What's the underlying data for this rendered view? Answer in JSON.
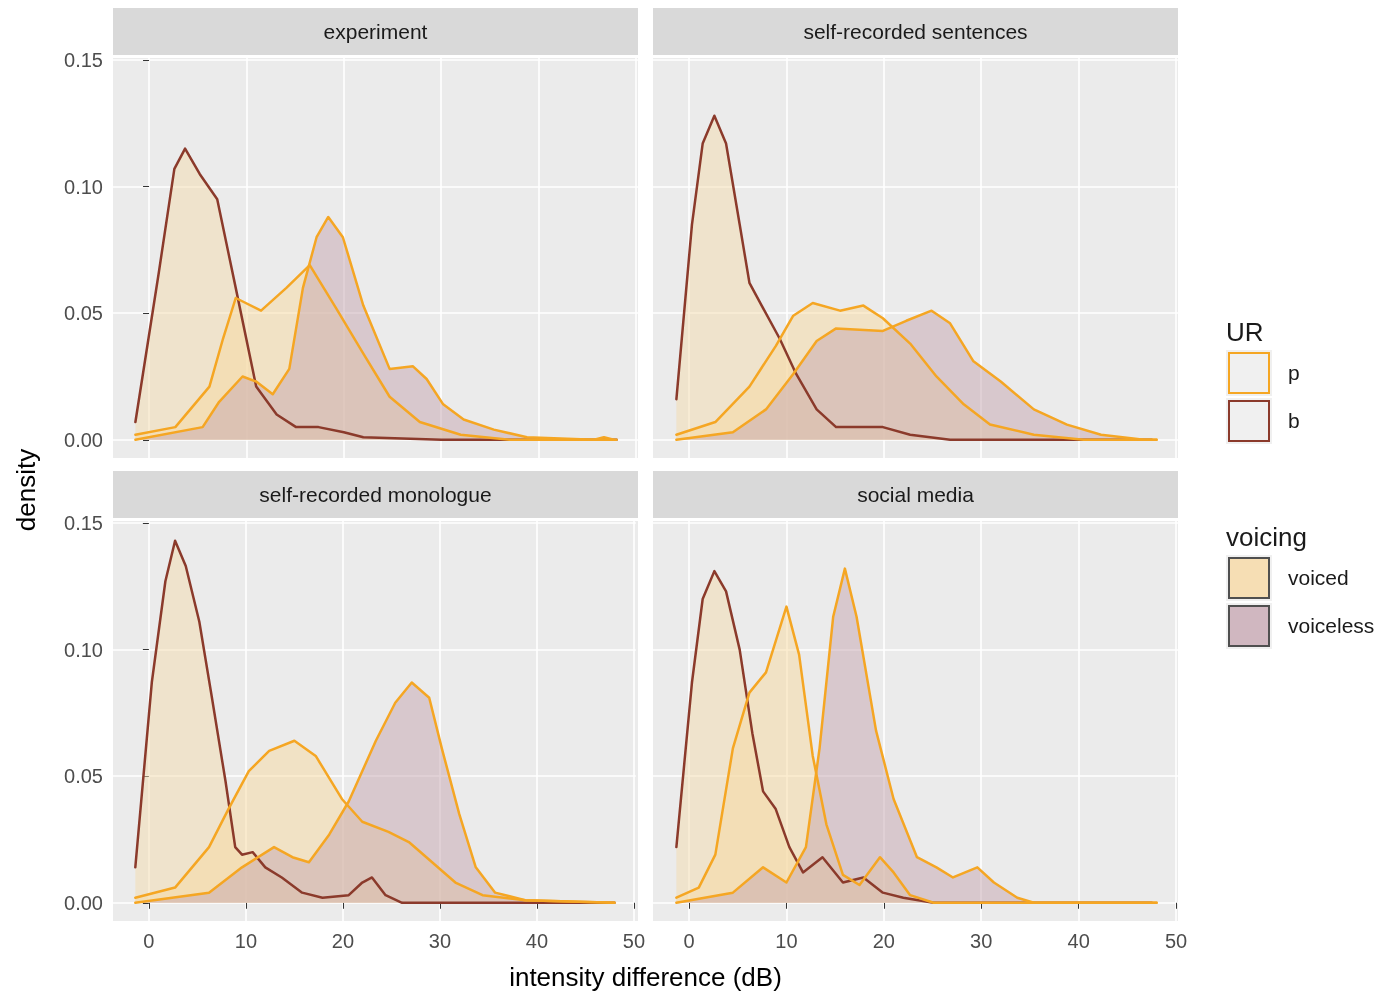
{
  "chart_data": [
    {
      "type": "area",
      "title": "experiment",
      "xlabel": "intensity difference (dB)",
      "ylabel": "density",
      "xlim": [
        -3.7,
        50.2
      ],
      "ylim": [
        -0.0072,
        0.1508
      ],
      "xticks": [
        0,
        10,
        20,
        30,
        40,
        50
      ],
      "yticks": [
        {
          "value": 0,
          "label": "0.00"
        },
        {
          "value": 0.05,
          "label": "0.05"
        },
        {
          "value": 0.1,
          "label": "0.10"
        },
        {
          "value": 0.15,
          "label": "0.15"
        }
      ],
      "grid": true,
      "tick_labels": "y",
      "series": [
        {
          "color": "#f4dcae",
          "x": [
            -1.4,
            1.0,
            2.6,
            3.7,
            5.2,
            7.0,
            8.9,
            11,
            13.1,
            15.1,
            17.4,
            20,
            22,
            30,
            40,
            48
          ],
          "values": [
            0.007,
            0.066,
            0.107,
            0.115,
            0.105,
            0.095,
            0.06,
            0.021,
            0.01,
            0.005,
            0.005,
            0.003,
            0.001,
            0,
            0,
            0
          ]
        },
        {
          "color": "#f8d9a0",
          "x": [
            -1.4,
            2.7,
            6.2,
            7.6,
            8.9,
            11.5,
            14.1,
            16.5,
            19.2,
            22,
            24.7,
            27.8,
            32,
            37,
            48
          ],
          "values": [
            0.002,
            0.005,
            0.021,
            0.04,
            0.056,
            0.051,
            0.06,
            0.069,
            0.052,
            0.034,
            0.017,
            0.007,
            0.002,
            0,
            0
          ]
        },
        {
          "color": "#c6a5b0",
          "x": [
            -1.4,
            5.5,
            7.2,
            9.6,
            11,
            12.7,
            14.4,
            15.8,
            17.2,
            18.4,
            19.9,
            22,
            24.7,
            27.1,
            28.5,
            30.2,
            32.3,
            35.4,
            38.8,
            45.7,
            46.7,
            47.7
          ],
          "values": [
            0,
            0.005,
            0.015,
            0.025,
            0.023,
            0.018,
            0.028,
            0.06,
            0.08,
            0.088,
            0.08,
            0.053,
            0.028,
            0.029,
            0.024,
            0.014,
            0.008,
            0.004,
            0.001,
            0,
            0.001,
            0
          ]
        }
      ]
    },
    {
      "type": "area",
      "title": "self-recorded sentences",
      "xlim": [
        -3.7,
        50.2
      ],
      "ylim": [
        -0.0072,
        0.1508
      ],
      "xticks": [
        0,
        10,
        20,
        30,
        40,
        50
      ],
      "yticks": [
        0,
        0.05,
        0.1,
        0.15
      ],
      "grid": true,
      "tick_labels": false,
      "series": [
        {
          "color": "#f4dcae",
          "x": [
            -1.3,
            0.3,
            1.4,
            2.6,
            3.8,
            5.2,
            6.2,
            7.6,
            9.3,
            11,
            13.1,
            15.1,
            17.9,
            19.9,
            22.7,
            26.8,
            47.5
          ],
          "values": [
            0.016,
            0.085,
            0.117,
            0.128,
            0.117,
            0.085,
            0.062,
            0.052,
            0.04,
            0.026,
            0.012,
            0.005,
            0.005,
            0.005,
            0.002,
            0,
            0
          ]
        },
        {
          "color": "#f8d9a0",
          "x": [
            -1.3,
            2.7,
            6.2,
            8.9,
            10.7,
            12.7,
            15.5,
            17.9,
            19.9,
            22.7,
            25.4,
            28.2,
            30.9,
            35.4,
            40.5,
            48
          ],
          "values": [
            0.002,
            0.007,
            0.021,
            0.037,
            0.049,
            0.054,
            0.051,
            0.053,
            0.048,
            0.038,
            0.025,
            0.014,
            0.006,
            0.002,
            0,
            0
          ]
        },
        {
          "color": "#c6a5b0",
          "x": [
            -1.3,
            4.5,
            7.9,
            10.7,
            13.1,
            15.1,
            19.9,
            22.3,
            24.9,
            26.8,
            29.2,
            32,
            35.4,
            38.8,
            42.3,
            46.7,
            48
          ],
          "values": [
            0,
            0.003,
            0.012,
            0.026,
            0.039,
            0.044,
            0.043,
            0.047,
            0.051,
            0.046,
            0.031,
            0.023,
            0.012,
            0.006,
            0.002,
            0,
            0
          ]
        }
      ]
    },
    {
      "type": "area",
      "title": "self-recorded monologue",
      "xlim": [
        -3.7,
        50.2
      ],
      "ylim": [
        -0.0072,
        0.1508
      ],
      "xticks": [
        0,
        10,
        20,
        30,
        40,
        50
      ],
      "yticks": [
        {
          "value": 0,
          "label": "0.00"
        },
        {
          "value": 0.05,
          "label": "0.05"
        },
        {
          "value": 0.1,
          "label": "0.10"
        },
        {
          "value": 0.15,
          "label": "0.15"
        }
      ],
      "grid": true,
      "series": [
        {
          "color": "#f4dcae",
          "x": [
            -1.4,
            0.3,
            1.7,
            2.7,
            3.8,
            5.2,
            6.5,
            7.9,
            8.9,
            9.6,
            10.7,
            12,
            13.7,
            15.8,
            17.9,
            20.6,
            22,
            23,
            24.4,
            26.1,
            48
          ],
          "values": [
            0.014,
            0.087,
            0.127,
            0.143,
            0.133,
            0.111,
            0.081,
            0.048,
            0.022,
            0.019,
            0.02,
            0.014,
            0.01,
            0.004,
            0.002,
            0.003,
            0.008,
            0.01,
            0.003,
            0,
            0
          ]
        },
        {
          "color": "#f8d9a0",
          "x": [
            -1.4,
            2.7,
            6.2,
            8.2,
            10.3,
            12.4,
            15,
            17.2,
            19.9,
            22,
            24.7,
            26.8,
            29.2,
            31.6,
            34.4,
            38.8,
            48
          ],
          "values": [
            0.002,
            0.006,
            0.022,
            0.037,
            0.052,
            0.06,
            0.064,
            0.058,
            0.041,
            0.032,
            0.028,
            0.024,
            0.016,
            0.008,
            0.003,
            0.001,
            0
          ]
        },
        {
          "color": "#c6a5b0",
          "x": [
            -1.4,
            6.2,
            9.6,
            12.9,
            14.8,
            16.5,
            18.6,
            20.6,
            23.4,
            25.4,
            27.1,
            28.9,
            30.2,
            32,
            33.7,
            35.7,
            38.8,
            48
          ],
          "values": [
            0,
            0.004,
            0.014,
            0.022,
            0.018,
            0.016,
            0.027,
            0.04,
            0.064,
            0.079,
            0.087,
            0.081,
            0.061,
            0.035,
            0.014,
            0.004,
            0.001,
            0
          ]
        }
      ]
    },
    {
      "type": "area",
      "title": "social media",
      "xlim": [
        -3.7,
        50.2
      ],
      "ylim": [
        -0.0072,
        0.1508
      ],
      "xticks": [
        0,
        10,
        20,
        30,
        40,
        50
      ],
      "yticks": [
        0,
        0.05,
        0.1,
        0.15
      ],
      "grid": true,
      "tick_labels": "x",
      "series": [
        {
          "color": "#f4dcae",
          "x": [
            -1.3,
            0.3,
            1.4,
            2.6,
            3.8,
            5.2,
            6.5,
            7.6,
            8.9,
            10.3,
            11.7,
            13.7,
            15.8,
            17.9,
            19.9,
            22,
            25.1,
            47.5
          ],
          "values": [
            0.022,
            0.087,
            0.12,
            0.131,
            0.123,
            0.1,
            0.067,
            0.044,
            0.037,
            0.022,
            0.012,
            0.018,
            0.008,
            0.01,
            0.004,
            0.002,
            0,
            0
          ]
        },
        {
          "color": "#f8d9a0",
          "x": [
            -1.3,
            1,
            2.7,
            4.5,
            6.2,
            7.9,
            10,
            11.3,
            12.7,
            14.1,
            15.8,
            17.5,
            19.6,
            21,
            22.7,
            25.1,
            48
          ],
          "values": [
            0.002,
            0.006,
            0.019,
            0.061,
            0.083,
            0.091,
            0.117,
            0.098,
            0.058,
            0.031,
            0.011,
            0.007,
            0.018,
            0.012,
            0.003,
            0,
            0
          ]
        },
        {
          "color": "#c6a5b0",
          "x": [
            -1.3,
            4.5,
            7.6,
            10,
            12,
            13.4,
            14.8,
            16,
            17.2,
            19.2,
            21,
            23.4,
            25.4,
            27.1,
            29.6,
            31.3,
            33.7,
            35.4,
            48
          ],
          "values": [
            0,
            0.004,
            0.014,
            0.008,
            0.022,
            0.061,
            0.113,
            0.132,
            0.113,
            0.068,
            0.041,
            0.018,
            0.014,
            0.01,
            0.014,
            0.008,
            0.002,
            0,
            0
          ]
        }
      ]
    },
    {
      "type": "other",
      "annotations": [
        "UR",
        "voicing"
      ],
      "series": [
        {
          "name": "p",
          "color": "#f5a623"
        },
        {
          "name": "b",
          "color": "#8b3a2b"
        },
        {
          "name": "voiced",
          "color": "#f8d9a0"
        },
        {
          "name": "voiceless",
          "color": "#c6a5b0"
        }
      ]
    }
  ]
}
